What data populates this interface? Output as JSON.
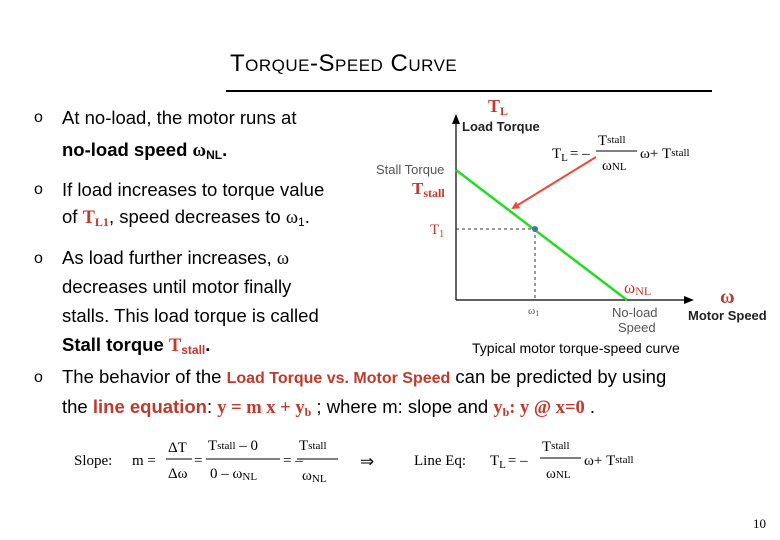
{
  "slide": {
    "title_first_1": "T",
    "title_small_1": "ORQUE",
    "title_dash": "-",
    "title_first_2": "S",
    "title_small_2": "PEED",
    "title_first_3": "C",
    "title_small_3": "URVE",
    "page_number": "10"
  },
  "bullets": [
    {
      "mark": "o",
      "line1": "At no-load, the motor runs at",
      "line2_a": "no-load speed ",
      "line2_sym": "ω",
      "line2_sub": "NL",
      "line2_end": "."
    },
    {
      "mark": "o",
      "line1": "If load increases to torque value",
      "line2_a": "of ",
      "line2_sym": "T",
      "line2_sub": "L1",
      "line2_b": ", speed decreases to ",
      "line2_sym2": "ω",
      "line2_sub2": "1",
      "line2_end": "."
    },
    {
      "mark": "o",
      "line1_a": "As load further increases, ",
      "line1_sym": "ω",
      "line2": "decreases until motor finally",
      "line3": "stalls. This load torque is called",
      "line4_a": "Stall torque ",
      "line4_sym": "T",
      "line4_sub": "stall",
      "line4_end": "."
    },
    {
      "mark": "o",
      "line1_a": "The behavior of the ",
      "line1_hl": "Load Torque vs. Motor Speed",
      "line1_b": " can be predicted by using",
      "line2_a": "the ",
      "line2_hl": "line equation",
      "line2_b": ": ",
      "line2_eq": "y = m x + y",
      "line2_eq_sub": "b",
      "line2_c": " ; where m: slope and ",
      "line2_yb": "y",
      "line2_yb_sub": "b",
      "line2_d": ": ",
      "line2_eq2": "y @ x=0",
      "line2_end": " ."
    }
  ],
  "chart": {
    "y_axis_title_1": "T",
    "y_axis_title_1_sub": "L",
    "y_axis_title_2": "Load Torque",
    "stall_label": "Stall Torque",
    "tstall_label": "T",
    "tstall_sub": "stall",
    "t1_label": "T",
    "t1_sub": "1",
    "omega1_label": "ω",
    "omega1_sub": "1",
    "noload_label_1": "No-load",
    "noload_label_2": "Speed",
    "x_axis_title_1": "ω",
    "x_axis_title_2": "Motor Speed",
    "omega_nl_label": "ω",
    "omega_nl_sub": "NL",
    "eq_lhs": "T",
    "eq_lhs_sub": "L",
    "eq_eq": "= –",
    "eq_num": "T",
    "eq_num_sub": "stall",
    "eq_den": "ω",
    "eq_den_sub": "NL",
    "eq_rest": "ω+ T",
    "eq_rest_sub": "stall",
    "caption": "Typical motor torque-speed curve",
    "line_color": "#22dd22",
    "marker_color": "#e74c3c",
    "point_color": "#4a6fa5"
  },
  "bottom": {
    "slope_label": "Slope:",
    "m_eq": "m =",
    "frac1_num": "ΔT",
    "frac1_den": "Δω",
    "eq1": "=",
    "frac2_num": "T",
    "frac2_num_sub": "stall",
    "frac2_num_tail": " – 0",
    "frac2_den": "0 – ω",
    "frac2_den_sub": "NL",
    "eq2": "= –",
    "frac3_num": "T",
    "frac3_num_sub": "stall",
    "frac3_den": "ω",
    "frac3_den_sub": "NL",
    "implies": "⇒",
    "line_eq_label": "Line Eq:",
    "le_lhs": "T",
    "le_lhs_sub": "L",
    "le_eq": "= –",
    "le_num": "T",
    "le_num_sub": "stall",
    "le_den": "ω",
    "le_den_sub": "NL",
    "le_rest": "ω+ T",
    "le_rest_sub": "stall"
  }
}
